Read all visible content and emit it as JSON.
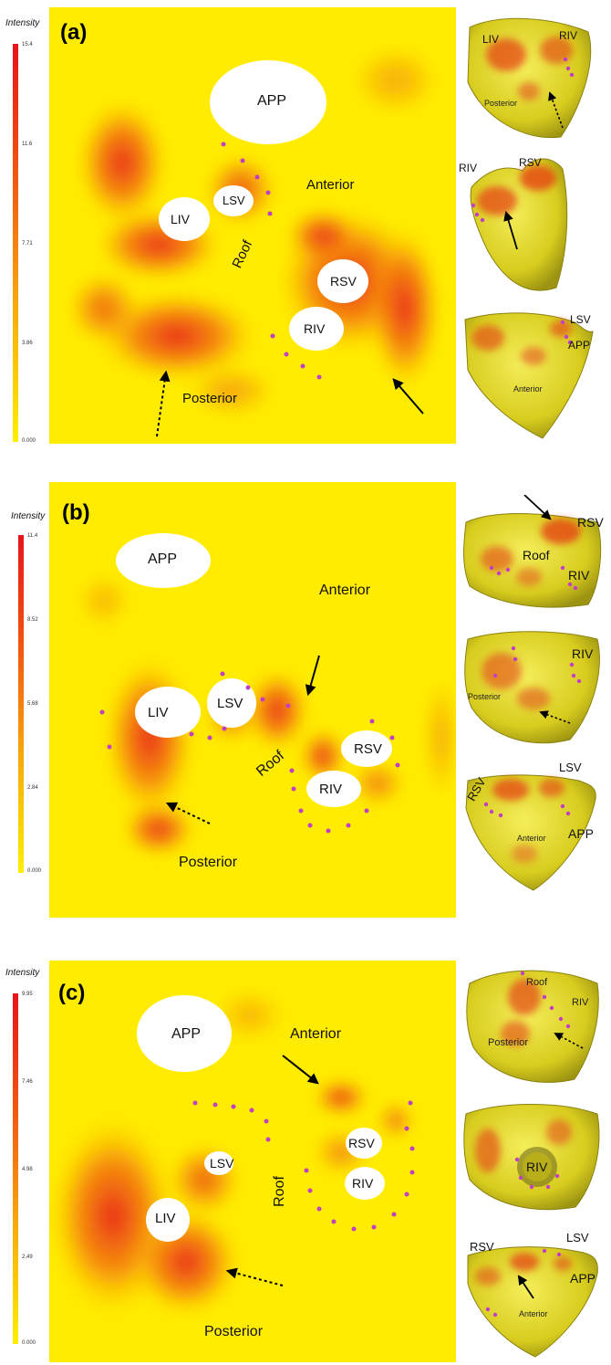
{
  "panels": [
    {
      "id": "a",
      "label": "(a)",
      "scale": {
        "title": "Intensity",
        "ticks": [
          "15.4",
          "11.6",
          "7.71",
          "3.86",
          "0.000"
        ]
      },
      "map_labels": {
        "app": "APP",
        "liv": "LIV",
        "lsv": "LSV",
        "rsv": "RSV",
        "riv": "RIV",
        "anterior": "Anterior",
        "posterior": "Posterior",
        "roof": "Roof"
      },
      "thumbnails": [
        {
          "labels": [
            "LIV",
            "RIV"
          ],
          "small": "Posterior"
        },
        {
          "labels": [
            "RIV",
            "RSV"
          ],
          "small": ""
        },
        {
          "labels": [
            "LSV",
            "APP"
          ],
          "small": "Anterior"
        }
      ]
    },
    {
      "id": "b",
      "label": "(b)",
      "scale": {
        "title": "Intensity",
        "ticks": [
          "11.4",
          "8.52",
          "5.68",
          "2.84",
          "0.000"
        ]
      },
      "map_labels": {
        "app": "APP",
        "liv": "LIV",
        "lsv": "LSV",
        "rsv": "RSV",
        "riv": "RIV",
        "anterior": "Anterior",
        "posterior": "Posterior",
        "roof": "Roof"
      },
      "thumbnails": [
        {
          "labels": [
            "RSV",
            "Roof",
            "RIV"
          ],
          "small": ""
        },
        {
          "labels": [
            "RIV"
          ],
          "small": "Posterior"
        },
        {
          "labels": [
            "RSV",
            "LSV",
            "APP"
          ],
          "small": "Anterior"
        }
      ]
    },
    {
      "id": "c",
      "label": "(c)",
      "scale": {
        "title": "Intensity",
        "ticks": [
          "9.95",
          "7.46",
          "4.98",
          "2.49",
          "0.000"
        ]
      },
      "map_labels": {
        "app": "APP",
        "liv": "LIV",
        "lsv": "LSV",
        "rsv": "RSV",
        "riv": "RIV",
        "anterior": "Anterior",
        "posterior": "Posterior",
        "roof": "Roof"
      },
      "thumbnails": [
        {
          "labels": [
            "Roof",
            "RIV"
          ],
          "small": "Posterior"
        },
        {
          "labels": [
            "RIV"
          ],
          "small": ""
        },
        {
          "labels": [
            "RSV",
            "LSV",
            "APP"
          ],
          "small": "Anterior"
        }
      ]
    }
  ]
}
